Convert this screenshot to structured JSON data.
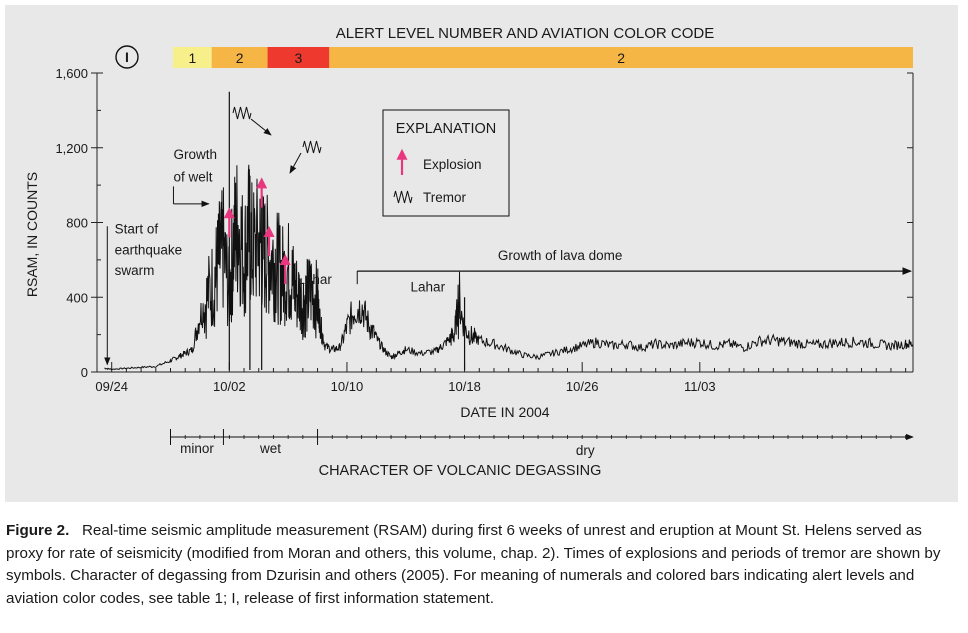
{
  "chart_data": {
    "type": "line",
    "title": "",
    "top_label": "ALERT LEVEL NUMBER AND AVIATION COLOR CODE",
    "info_statement_marker": "I",
    "xlabel": "DATE IN 2004",
    "ylabel": "RSAM, IN COUNTS",
    "ylim": [
      0,
      1600
    ],
    "yticks": [
      0,
      400,
      800,
      1200,
      1600
    ],
    "ytick_labels": [
      "0",
      "400",
      "800",
      "1,200",
      "1,600"
    ],
    "xlim_days_from_0924": [
      -1,
      54.5
    ],
    "xticks": [
      {
        "day": 0,
        "label": "09/24"
      },
      {
        "day": 8,
        "label": "10/02"
      },
      {
        "day": 16,
        "label": "10/10"
      },
      {
        "day": 24,
        "label": "10/18"
      },
      {
        "day": 32,
        "label": "10/26"
      },
      {
        "day": 40,
        "label": "11/03"
      }
    ],
    "alert_levels": [
      {
        "label": "1",
        "start": 3.8,
        "end": 6.8,
        "color": "#f7ef8a"
      },
      {
        "label": "2",
        "start": 6.8,
        "end": 10.6,
        "color": "#f5b646"
      },
      {
        "label": "3",
        "start": 10.6,
        "end": 14.8,
        "color": "#ee3a2e"
      },
      {
        "label": "2",
        "start": 14.8,
        "end": 54.5,
        "color": "#f5b646"
      }
    ],
    "series": [
      {
        "values_x": [
          -0.5,
          0,
          1,
          2,
          3,
          4,
          4.5,
          5,
          5.5,
          6,
          6.5,
          7,
          7.3,
          7.6,
          8,
          8.3,
          8.6,
          9,
          9.3,
          9.6,
          10,
          10.3,
          10.6,
          11,
          11.3,
          11.6,
          12,
          12.3,
          12.6,
          13,
          13.3,
          13.6,
          14,
          14.2,
          14.5,
          15,
          15.5,
          16,
          16.5,
          17,
          17.5,
          18,
          18.5,
          19,
          19.5,
          20,
          21,
          22,
          22.5,
          23,
          23.3,
          23.6,
          24,
          24.5,
          25,
          26,
          27,
          28,
          29,
          30,
          31,
          32,
          33,
          34,
          35,
          36,
          37,
          38,
          39,
          40,
          41,
          42,
          43,
          44,
          45,
          46,
          47,
          48,
          49,
          50,
          51,
          52,
          53,
          54,
          54.5
        ],
        "values": [
          20,
          15,
          20,
          25,
          30,
          60,
          80,
          100,
          120,
          300,
          400,
          500,
          600,
          650,
          420,
          700,
          800,
          600,
          750,
          650,
          700,
          640,
          620,
          600,
          560,
          520,
          540,
          480,
          420,
          380,
          400,
          440,
          380,
          250,
          140,
          120,
          130,
          240,
          330,
          350,
          250,
          180,
          120,
          80,
          100,
          120,
          100,
          110,
          140,
          180,
          200,
          380,
          230,
          190,
          170,
          150,
          120,
          90,
          80,
          100,
          120,
          140,
          160,
          140,
          150,
          130,
          150,
          140,
          155,
          160,
          140,
          150,
          130,
          165,
          170,
          160,
          150,
          145,
          155,
          160,
          160,
          150,
          140,
          150,
          150
        ]
      }
    ],
    "spikes": [
      {
        "day": 8.0,
        "value": 1500
      },
      {
        "day": 9.4,
        "value": 1050
      },
      {
        "day": 10.2,
        "value": 950
      },
      {
        "day": 24.0,
        "value": 400
      }
    ],
    "annotations": [
      {
        "text": "Start of",
        "day": 0.2,
        "value": 740
      },
      {
        "text": "earthquake",
        "day": 0.2,
        "value": 630
      },
      {
        "text": "swarm",
        "day": 0.2,
        "value": 520
      },
      {
        "text": "Growth",
        "day": 4.2,
        "value": 1140
      },
      {
        "text": "of welt",
        "day": 4.2,
        "value": 1020
      },
      {
        "text": "Lahar",
        "day": 13.8,
        "value": 470
      },
      {
        "text": "Lahar",
        "day": 21.5,
        "value": 430
      },
      {
        "text": "Growth of lava dome",
        "day": 30.5,
        "value": 600
      }
    ],
    "explosions_days": [
      {
        "day": 8.0,
        "value": 720
      },
      {
        "day": 10.2,
        "value": 880
      },
      {
        "day": 10.7,
        "value": 620
      },
      {
        "day": 11.8,
        "value": 470
      }
    ],
    "explanation": {
      "title": "EXPLANATION",
      "explosion_label": "Explosion",
      "tremor_label": "Tremor"
    },
    "degassing": {
      "label": "CHARACTER OF VOLCANIC DEGASSING",
      "segments": [
        {
          "label": "minor",
          "start": 4.0,
          "end": 7.6
        },
        {
          "label": "wet",
          "start": 7.6,
          "end": 14.0
        },
        {
          "label": "dry",
          "start": 14.0,
          "end": 54.5
        }
      ]
    },
    "colors": {
      "line": "#111111",
      "explosion": "#e8377f",
      "panel": "#e8e8e8"
    }
  },
  "caption": {
    "label": "Figure 2.",
    "text": "Real-time seismic amplitude measurement (RSAM) during first 6 weeks of unrest and eruption at Mount St. Helens served as proxy for rate of seismicity (modified from Moran and others, this volume, chap. 2). Times of explosions and periods of tremor are shown by symbols. Character of degassing from Dzurisin and others (2005). For meaning of numerals and colored bars indicating alert levels and aviation color codes, see table 1; I, release of first information statement."
  }
}
